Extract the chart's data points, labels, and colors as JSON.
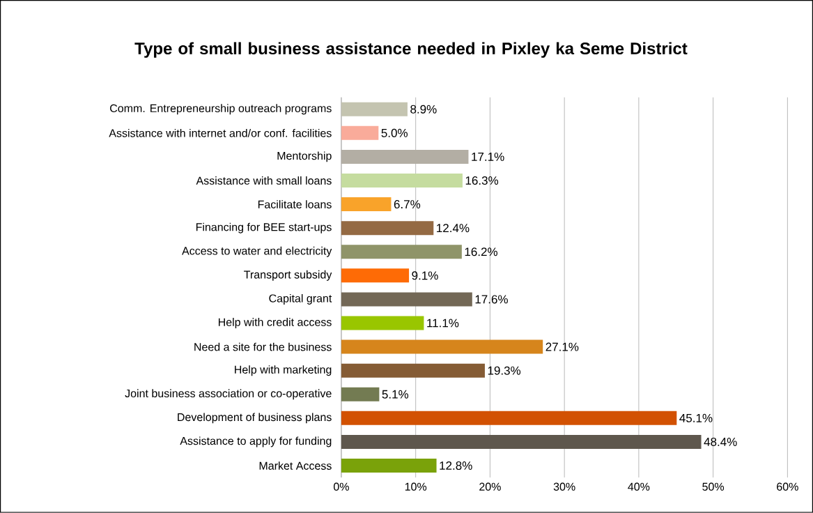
{
  "chart_data": {
    "type": "bar",
    "orientation": "horizontal",
    "title": "Type of small business assistance needed in Pixley ka Seme District",
    "categories": [
      "Comm. Entrepreneurship outreach programs",
      "Assistance with internet and/or conf. facilities",
      "Mentorship",
      "Assistance with small loans",
      "Facilitate loans",
      "Financing for BEE start-ups",
      "Access to water and electricity",
      "Transport subsidy",
      "Capital grant",
      "Help with credit access",
      "Need a site for the business",
      "Help with marketing",
      "Joint business association or co-operative",
      "Development of business plans",
      "Assistance to apply for funding",
      "Market Access"
    ],
    "values": [
      8.9,
      5.0,
      17.1,
      16.3,
      6.7,
      12.4,
      16.2,
      9.1,
      17.6,
      11.1,
      27.1,
      19.3,
      5.1,
      45.1,
      48.4,
      12.8
    ],
    "value_labels": [
      "8.9%",
      "5.0%",
      "17.1%",
      "16.3%",
      "6.7%",
      "12.4%",
      "16.2%",
      "9.1%",
      "17.6%",
      "11.1%",
      "27.1%",
      "19.3%",
      "5.1%",
      "45.1%",
      "48.4%",
      "12.8%"
    ],
    "colors": [
      "#c4c4b0",
      "#f9ab9a",
      "#b3aea4",
      "#c5dc9f",
      "#f9a32a",
      "#946a43",
      "#8f9469",
      "#fe6b06",
      "#736856",
      "#99c600",
      "#d6851c",
      "#855c35",
      "#737b52",
      "#d25102",
      "#5e574d",
      "#7aa20a"
    ],
    "xlim": [
      0,
      60
    ],
    "xticks": [
      {
        "value": 0,
        "label": "0%"
      },
      {
        "value": 10,
        "label": "10%"
      },
      {
        "value": 20,
        "label": "20%"
      },
      {
        "value": 30,
        "label": "30%"
      },
      {
        "value": 40,
        "label": "40%"
      },
      {
        "value": 50,
        "label": "50%"
      },
      {
        "value": 60,
        "label": "60%"
      }
    ],
    "grid": "x"
  }
}
